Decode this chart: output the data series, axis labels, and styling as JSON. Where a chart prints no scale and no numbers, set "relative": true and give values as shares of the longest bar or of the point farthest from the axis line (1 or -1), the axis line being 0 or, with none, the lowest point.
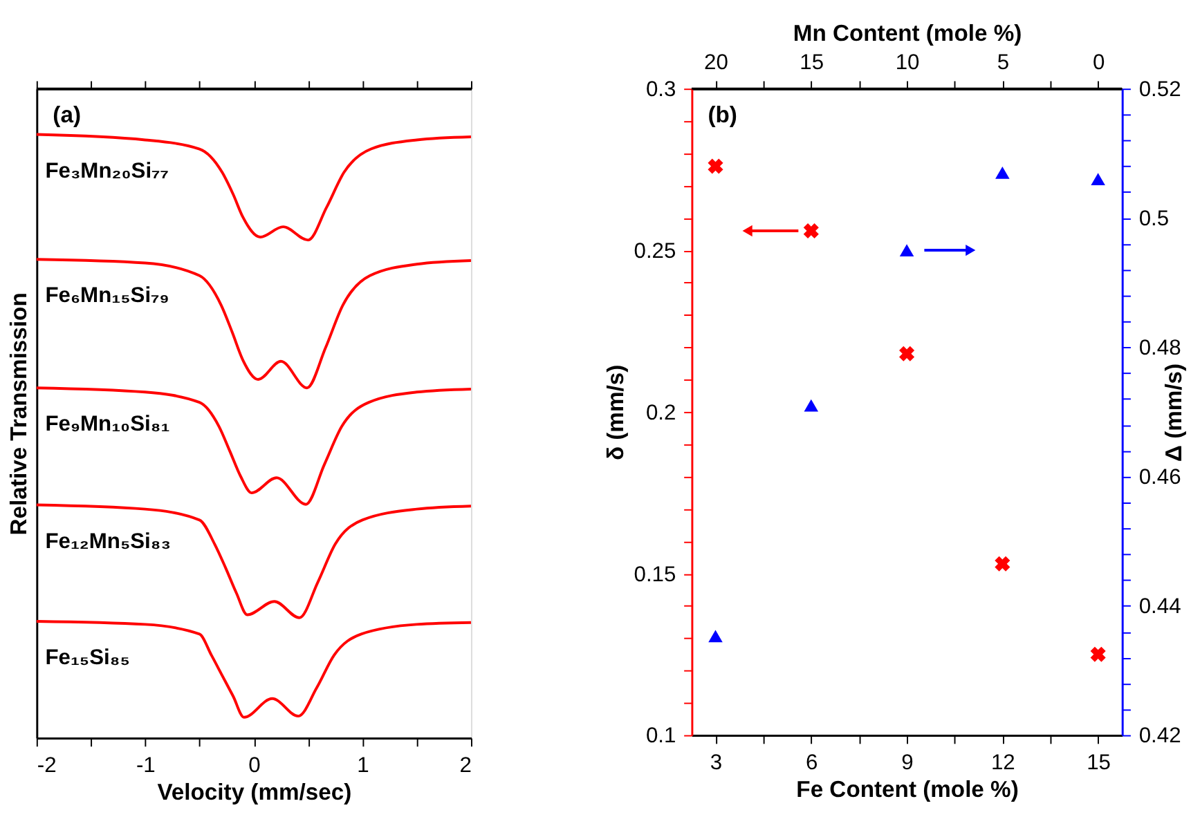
{
  "chart_data": [
    {
      "type": "line",
      "relative": true,
      "xlabel": "Velocity (mm/sec)",
      "ylabel": "Relative Transmission",
      "xlim": [
        -2,
        2
      ],
      "xticks": [
        -2,
        {
          "value": -1.5,
          "label": null
        },
        -1,
        {
          "value": -0.5,
          "label": null
        },
        0,
        {
          "value": 0.5,
          "label": null
        },
        1,
        {
          "value": 1.5,
          "label": null
        },
        2
      ],
      "tick_labels": "x",
      "grid": false,
      "marker": "none",
      "line_style": "solid",
      "series": [
        {
          "color": "#ff0000",
          "x": [
            -2,
            -1,
            -0.5,
            -0.29,
            -0.19,
            -0.1,
            0.06,
            0.27,
            0.5,
            0.67,
            0.83,
            1.08,
            1.5,
            2
          ],
          "values": [
            1.0,
            0.991,
            0.976,
            0.937,
            0.901,
            0.863,
            0.83,
            0.847,
            0.825,
            0.879,
            0.937,
            0.976,
            0.991,
            0.996
          ]
        },
        {
          "color": "#ff0000",
          "x": [
            -2,
            -1,
            -0.5,
            -0.3,
            -0.2,
            -0.1,
            0.04,
            0.25,
            0.49,
            0.66,
            0.82,
            1.07,
            1.5,
            2
          ],
          "values": [
            0.793,
            0.787,
            0.766,
            0.717,
            0.673,
            0.626,
            0.594,
            0.624,
            0.58,
            0.646,
            0.717,
            0.766,
            0.785,
            0.791
          ]
        },
        {
          "color": "#ff0000",
          "x": [
            -2,
            -1,
            -0.5,
            -0.32,
            -0.22,
            -0.12,
            -0.02,
            0.21,
            0.48,
            0.65,
            0.81,
            1.06,
            1.5,
            2
          ],
          "values": [
            0.58,
            0.573,
            0.556,
            0.516,
            0.475,
            0.433,
            0.406,
            0.431,
            0.387,
            0.453,
            0.516,
            0.556,
            0.573,
            0.578
          ]
        },
        {
          "color": "#ff0000",
          "x": [
            -2,
            -1,
            -0.5,
            -0.36,
            -0.26,
            -0.16,
            -0.06,
            0.19,
            0.42,
            0.59,
            0.75,
            1.0,
            1.5,
            2
          ],
          "values": [
            0.386,
            0.379,
            0.361,
            0.321,
            0.282,
            0.24,
            0.204,
            0.226,
            0.199,
            0.258,
            0.321,
            0.361,
            0.379,
            0.384
          ]
        },
        {
          "color": "#ff0000",
          "x": [
            -2,
            -1,
            -0.5,
            -0.39,
            -0.29,
            -0.19,
            -0.09,
            0.17,
            0.41,
            0.58,
            0.74,
            0.99,
            1.5,
            2
          ],
          "values": [
            0.193,
            0.188,
            0.172,
            0.137,
            0.103,
            0.069,
            0.034,
            0.065,
            0.036,
            0.083,
            0.137,
            0.172,
            0.188,
            0.191
          ]
        }
      ],
      "annotations": [
        "(a)",
        "Fe₃Mn₂₀Si₇₇",
        "Fe₆Mn₁₅Si₇₉",
        "Fe₉Mn₁₀Si₈₁",
        "Fe₁₂Mn₅Si₈₃",
        "Fe₁₅Si₈₅"
      ]
    },
    {
      "type": "scatter",
      "xlabel": "Fe Content (mole %)",
      "x2label": "Mn Content (mole %)",
      "ylabel": "δ (mm/s)",
      "y2label": "Δ (mm/s)",
      "x": [
        3,
        6,
        9,
        12,
        15
      ],
      "xlim": [
        2.25,
        15.75
      ],
      "xticks": [
        3,
        {
          "value": 4.5,
          "label": null
        },
        6,
        {
          "value": 7.5,
          "label": null
        },
        9,
        {
          "value": 10.5,
          "label": null
        },
        12,
        {
          "value": 13.5,
          "label": null
        },
        15
      ],
      "x2lim": [
        21.25,
        -1.25
      ],
      "x2ticks": [
        20,
        {
          "value": 17.5,
          "label": null
        },
        15,
        {
          "value": 12.5,
          "label": null
        },
        10,
        {
          "value": 7.5,
          "label": null
        },
        5,
        {
          "value": 2.5,
          "label": null
        },
        0
      ],
      "ylim": [
        0.1,
        0.3
      ],
      "yticks": [
        0.1,
        {
          "value": 0.11,
          "label": null
        },
        {
          "value": 0.12,
          "label": null
        },
        {
          "value": 0.13,
          "label": null
        },
        {
          "value": 0.14,
          "label": null
        },
        0.15,
        {
          "value": 0.16,
          "label": null
        },
        {
          "value": 0.17,
          "label": null
        },
        {
          "value": 0.18,
          "label": null
        },
        {
          "value": 0.19,
          "label": null
        },
        0.2,
        {
          "value": 0.21,
          "label": null
        },
        {
          "value": 0.22,
          "label": null
        },
        {
          "value": 0.23,
          "label": null
        },
        {
          "value": 0.24,
          "label": null
        },
        0.25,
        {
          "value": 0.26,
          "label": null
        },
        {
          "value": 0.27,
          "label": null
        },
        {
          "value": 0.28,
          "label": null
        },
        {
          "value": 0.29,
          "label": null
        },
        0.3
      ],
      "y2lim": [
        0.42,
        0.52
      ],
      "y2ticks": [
        0.42,
        {
          "value": 0.424,
          "label": null
        },
        {
          "value": 0.428,
          "label": null
        },
        {
          "value": 0.432,
          "label": null
        },
        {
          "value": 0.436,
          "label": null
        },
        0.44,
        {
          "value": 0.444,
          "label": null
        },
        {
          "value": 0.448,
          "label": null
        },
        {
          "value": 0.452,
          "label": null
        },
        {
          "value": 0.456,
          "label": null
        },
        0.46,
        {
          "value": 0.464,
          "label": null
        },
        {
          "value": 0.468,
          "label": null
        },
        {
          "value": 0.472,
          "label": null
        },
        {
          "value": 0.476,
          "label": null
        },
        0.48,
        {
          "value": 0.484,
          "label": null
        },
        {
          "value": 0.488,
          "label": null
        },
        {
          "value": 0.492,
          "label": null
        },
        {
          "value": 0.496,
          "label": null
        },
        0.5,
        {
          "value": 0.504,
          "label": null
        },
        {
          "value": 0.508,
          "label": null
        },
        {
          "value": 0.512,
          "label": null
        },
        {
          "value": 0.516,
          "label": null
        },
        0.52
      ],
      "grid": false,
      "series": [
        {
          "color": "#ff0000",
          "marker": "cross",
          "values": [
            0.276,
            0.256,
            0.218,
            0.153,
            0.125
          ]
        },
        {
          "color": "#0000ff",
          "marker": "triangle",
          "axis": "y2",
          "values": [
            0.4353,
            0.471,
            0.495,
            0.507,
            0.506
          ]
        }
      ],
      "annotations": [
        "(b)"
      ]
    }
  ]
}
